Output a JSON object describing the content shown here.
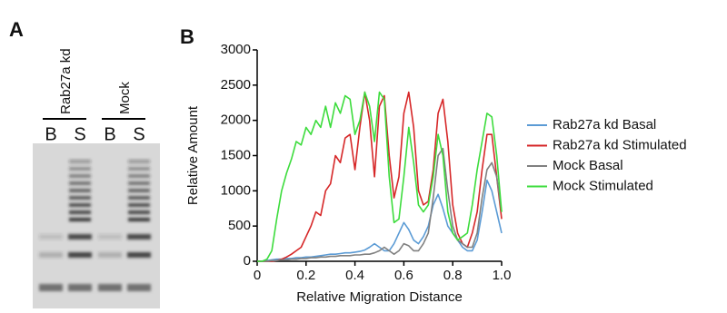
{
  "figure": {
    "panel_a_label": "A",
    "panel_b_label": "B",
    "gel": {
      "groups": [
        {
          "label": "Rab27a kd",
          "lanes": [
            "B",
            "S"
          ]
        },
        {
          "label": "Mock",
          "lanes": [
            "B",
            "S"
          ]
        }
      ]
    }
  },
  "chart_data": {
    "type": "line",
    "x_label": "Relative Migration Distance",
    "y_label": "Relative Amount",
    "xlim": [
      0,
      1
    ],
    "ylim": [
      0,
      3000
    ],
    "xticks": [
      0,
      0.2,
      0.4,
      0.6,
      0.8,
      {
        "value": 1,
        "label": "1.0"
      }
    ],
    "yticks": [
      0,
      500,
      1000,
      1500,
      2000,
      2500,
      3000
    ],
    "grid": false,
    "legend": "right",
    "x": [
      0,
      0.02,
      0.04,
      0.06,
      0.08,
      0.1,
      0.12,
      0.14,
      0.16,
      0.18,
      0.2,
      0.22,
      0.24,
      0.26,
      0.28,
      0.3,
      0.32,
      0.34,
      0.36,
      0.38,
      0.4,
      0.42,
      0.44,
      0.46,
      0.48,
      0.5,
      0.52,
      0.54,
      0.56,
      0.58,
      0.6,
      0.62,
      0.64,
      0.66,
      0.68,
      0.7,
      0.72,
      0.74,
      0.76,
      0.78,
      0.8,
      0.82,
      0.84,
      0.86,
      0.88,
      0.9,
      0.92,
      0.94,
      0.96,
      0.98,
      1
    ],
    "series": [
      {
        "name": "Rab27a kd Basal",
        "color": "#5b9bd5",
        "values": [
          0,
          0,
          10,
          20,
          30,
          30,
          40,
          40,
          50,
          50,
          60,
          60,
          70,
          80,
          90,
          100,
          100,
          110,
          120,
          120,
          130,
          140,
          160,
          200,
          250,
          200,
          150,
          150,
          250,
          400,
          550,
          450,
          300,
          250,
          350,
          500,
          800,
          950,
          750,
          500,
          400,
          300,
          200,
          150,
          150,
          300,
          700,
          1150,
          1000,
          700,
          400
        ]
      },
      {
        "name": "Rab27a kd Stimulated",
        "color": "#d62728",
        "values": [
          0,
          0,
          0,
          0,
          10,
          30,
          60,
          100,
          150,
          200,
          350,
          500,
          700,
          650,
          1000,
          1100,
          1500,
          1400,
          1750,
          1800,
          1300,
          1900,
          2400,
          2000,
          1200,
          2200,
          2350,
          1500,
          900,
          1200,
          2100,
          2400,
          1900,
          1000,
          800,
          850,
          1300,
          2100,
          2300,
          1700,
          800,
          400,
          250,
          200,
          400,
          700,
          1300,
          1800,
          1800,
          1200,
          600
        ]
      },
      {
        "name": "Mock Basal",
        "color": "#808080",
        "values": [
          0,
          0,
          0,
          10,
          10,
          20,
          20,
          30,
          30,
          40,
          40,
          50,
          50,
          60,
          60,
          70,
          70,
          80,
          80,
          80,
          90,
          90,
          100,
          100,
          120,
          150,
          200,
          150,
          100,
          150,
          250,
          220,
          150,
          150,
          250,
          400,
          900,
          1500,
          1600,
          1000,
          500,
          300,
          250,
          200,
          200,
          400,
          900,
          1300,
          1400,
          1200,
          700
        ]
      },
      {
        "name": "Mock Stimulated",
        "color": "#3ddc3d",
        "values": [
          0,
          0,
          30,
          150,
          600,
          1000,
          1250,
          1450,
          1700,
          1650,
          1900,
          1800,
          2000,
          1900,
          2200,
          1900,
          2250,
          2100,
          2350,
          2300,
          1800,
          2000,
          2400,
          2200,
          1700,
          2400,
          2300,
          1200,
          550,
          600,
          1200,
          1900,
          1400,
          800,
          700,
          800,
          1200,
          1800,
          1500,
          700,
          400,
          300,
          350,
          400,
          800,
          1300,
          1700,
          2100,
          2050,
          1500,
          700
        ]
      }
    ]
  }
}
